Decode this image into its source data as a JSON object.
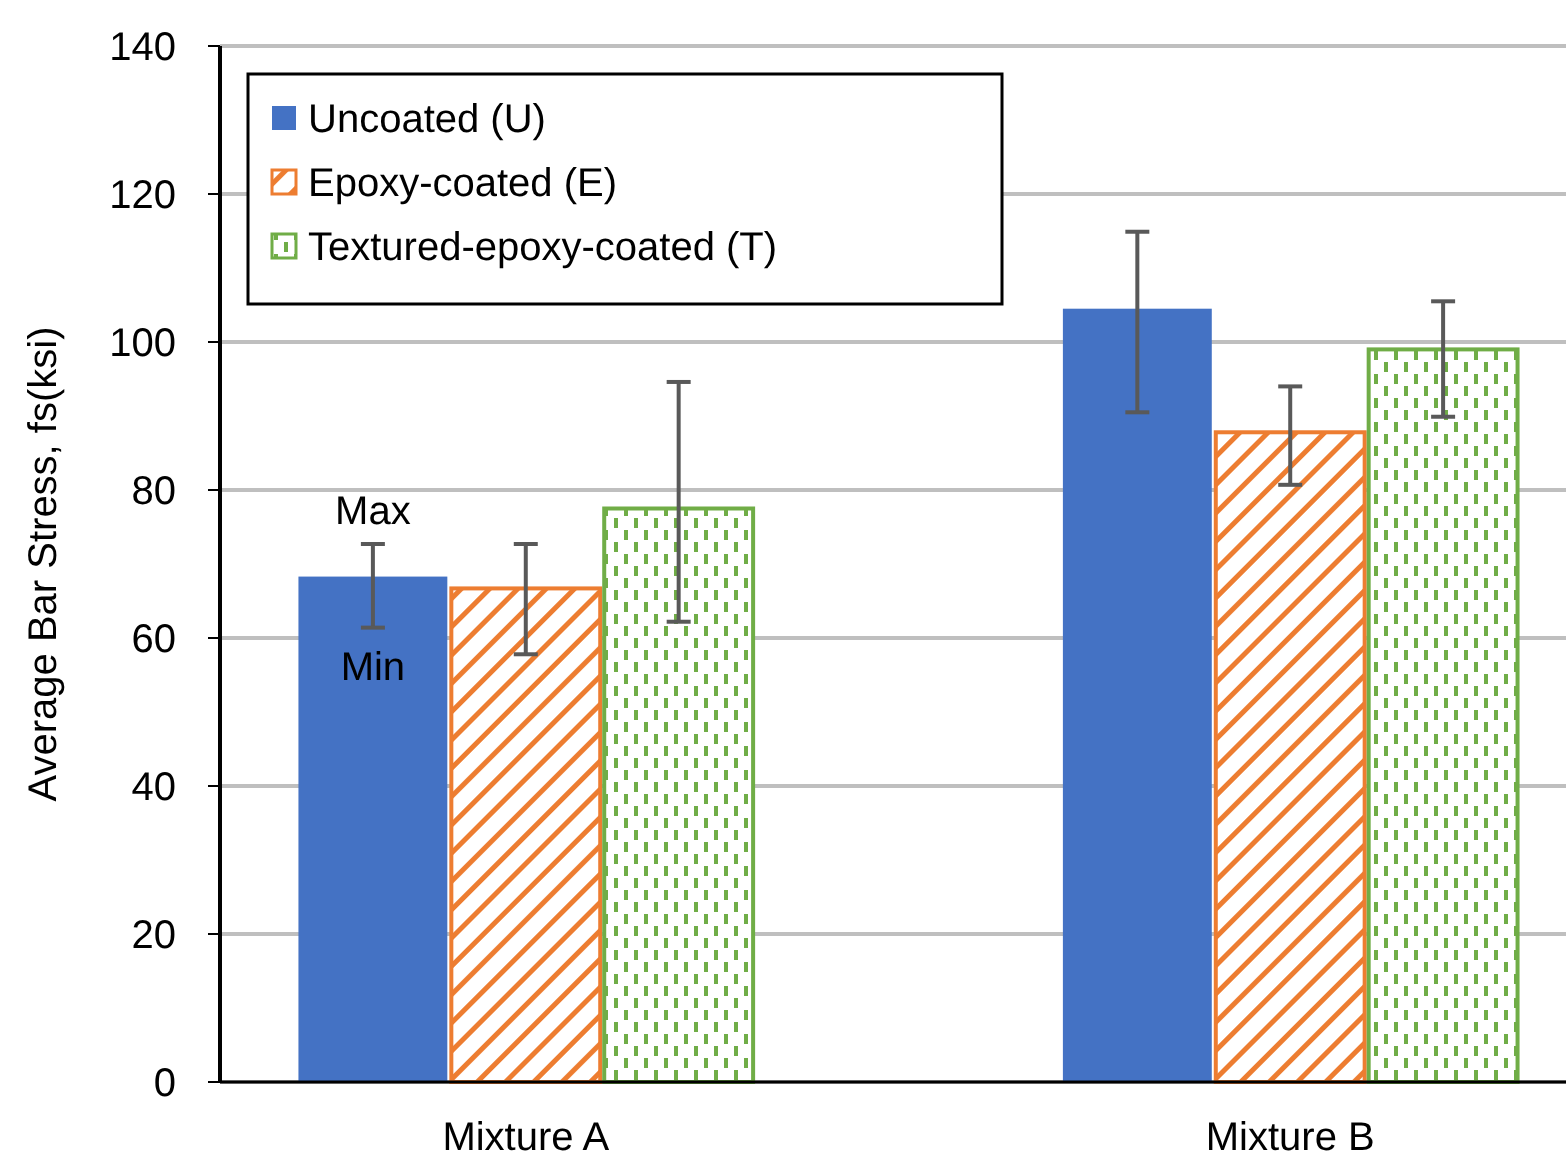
{
  "chart_data": {
    "type": "bar",
    "ylabel": "Average Bar Stress, fs(ksi)",
    "categories": [
      "Mixture A",
      "Mixture B"
    ],
    "series": [
      {
        "name": "Uncoated (U)",
        "color": "#4472c4",
        "values": [
          68.3,
          104.5
        ],
        "errors": [
          [
            61.4,
            72.7
          ],
          [
            90.5,
            114.9
          ]
        ]
      },
      {
        "name": "Epoxy-coated (E)",
        "color": "#ed7d31",
        "values": [
          66.7,
          87.8
        ],
        "errors": [
          [
            57.8,
            72.7
          ],
          [
            80.7,
            94
          ]
        ]
      },
      {
        "name": "Textured-epoxy-coated (T)",
        "color": "#70ad47",
        "values": [
          77.5,
          99
        ],
        "errors": [
          [
            62.2,
            94.6
          ],
          [
            89.9,
            105.5
          ]
        ]
      }
    ],
    "ylim": [
      0,
      140
    ],
    "yticks": [
      0,
      20,
      40,
      60,
      80,
      100,
      120,
      140
    ],
    "grid": "y",
    "legend": "top left",
    "annotations": [
      "Max",
      "Min"
    ]
  }
}
